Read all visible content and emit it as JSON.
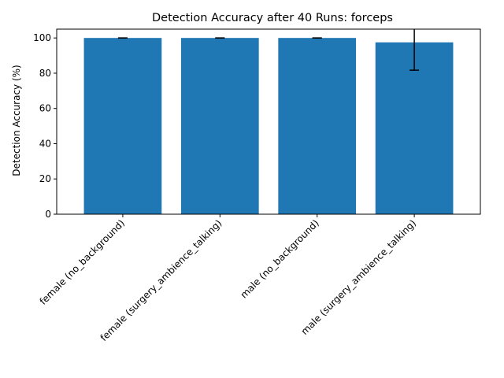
{
  "chart_data": {
    "type": "bar",
    "title": "Detection Accuracy after 40 Runs: forceps",
    "xlabel": "",
    "ylabel": "Detection Accuracy (%)",
    "categories": [
      "female (no_background)",
      "female (surgery_ambience_talking)",
      "male (no_background)",
      "male (surgery_ambience_talking)"
    ],
    "values": [
      100,
      100,
      100,
      97.5
    ],
    "errors": [
      0,
      0,
      0,
      15.8
    ],
    "ylim": [
      0,
      105
    ],
    "yticks": [
      0,
      20,
      40,
      60,
      80,
      100
    ],
    "grid": false,
    "colors": {
      "bar": "#1f77b4",
      "errorbar": "#000000",
      "axis": "#000000"
    }
  }
}
